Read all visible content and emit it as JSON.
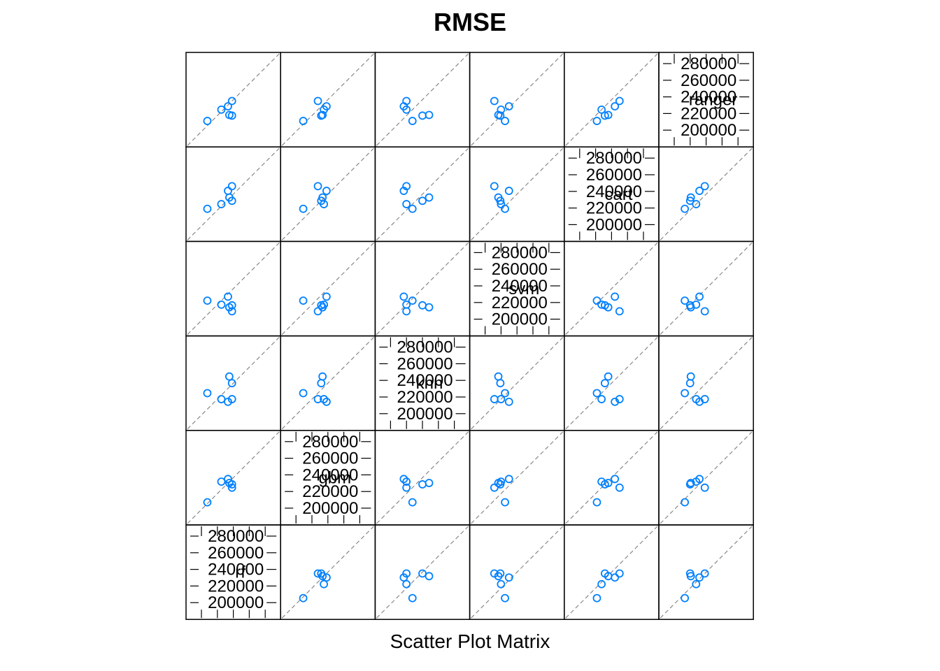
{
  "chart_data": {
    "type": "scatter",
    "title": "RMSE",
    "xlabel": "Scatter Plot Matrix",
    "variables": [
      "rf",
      "gbm",
      "knn",
      "svm",
      "cart",
      "ranger"
    ],
    "tick_labels": [
      "200000",
      "220000",
      "240000",
      "260000",
      "280000"
    ],
    "range": [
      190000,
      290000
    ],
    "diagonal_reference_line": true,
    "point_color": "#0080ff",
    "observations": {
      "rf": [
        222000,
        232000,
        238000,
        238000,
        234000,
        201000
      ],
      "gbm": [
        234000,
        238000,
        230000,
        225000,
        232000,
        203000
      ],
      "knn": [
        216000,
        212000,
        240000,
        216000,
        250000,
        225000
      ],
      "svm": [
        216000,
        228000,
        215000,
        206000,
        212000,
        222000
      ],
      "cart": [
        225000,
        245000,
        230000,
        252000,
        235000,
        218000
      ],
      "ranger": [
        225000,
        230000,
        216000,
        238000,
        217000,
        208000
      ]
    }
  }
}
